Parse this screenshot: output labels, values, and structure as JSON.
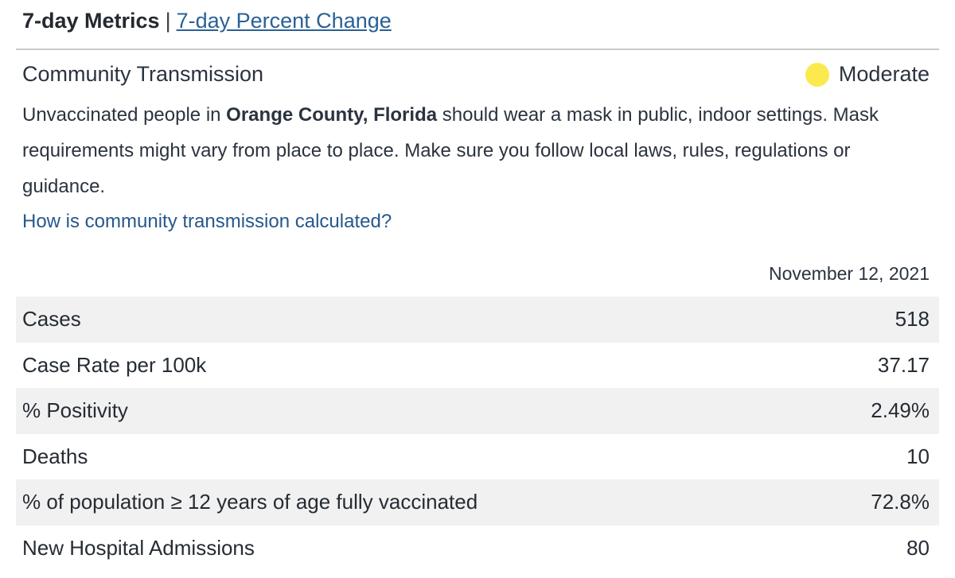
{
  "header": {
    "title": "7-day Metrics",
    "separator": "|",
    "link_label": "7-day Percent Change"
  },
  "transmission": {
    "label": "Community Transmission",
    "level": "Moderate",
    "level_color": "#fbea4e",
    "description_prefix": "Unvaccinated people in ",
    "description_bold": "Orange County, Florida",
    "description_suffix": " should wear a mask in public, indoor settings. Mask requirements might vary from place to place. Make sure you follow local laws, rules, regulations or guidance.",
    "question_link": "How is community transmission calculated?"
  },
  "metrics": {
    "date": "November 12, 2021",
    "rows": [
      {
        "label": "Cases",
        "value": "518"
      },
      {
        "label": "Case Rate per 100k",
        "value": "37.17"
      },
      {
        "label": "% Positivity",
        "value": "2.49%"
      },
      {
        "label": "Deaths",
        "value": "10"
      },
      {
        "label": "% of population ≥ 12 years of age fully vaccinated",
        "value": "72.8%"
      },
      {
        "label": "New Hospital Admissions",
        "value": "80"
      }
    ]
  },
  "colors": {
    "link_blue": "#2a6195",
    "question_link_blue": "#26588c",
    "row_stripe_gray": "#f1f1f1",
    "divider_gray": "#c9c9c9",
    "text_dark": "#2b333f"
  }
}
